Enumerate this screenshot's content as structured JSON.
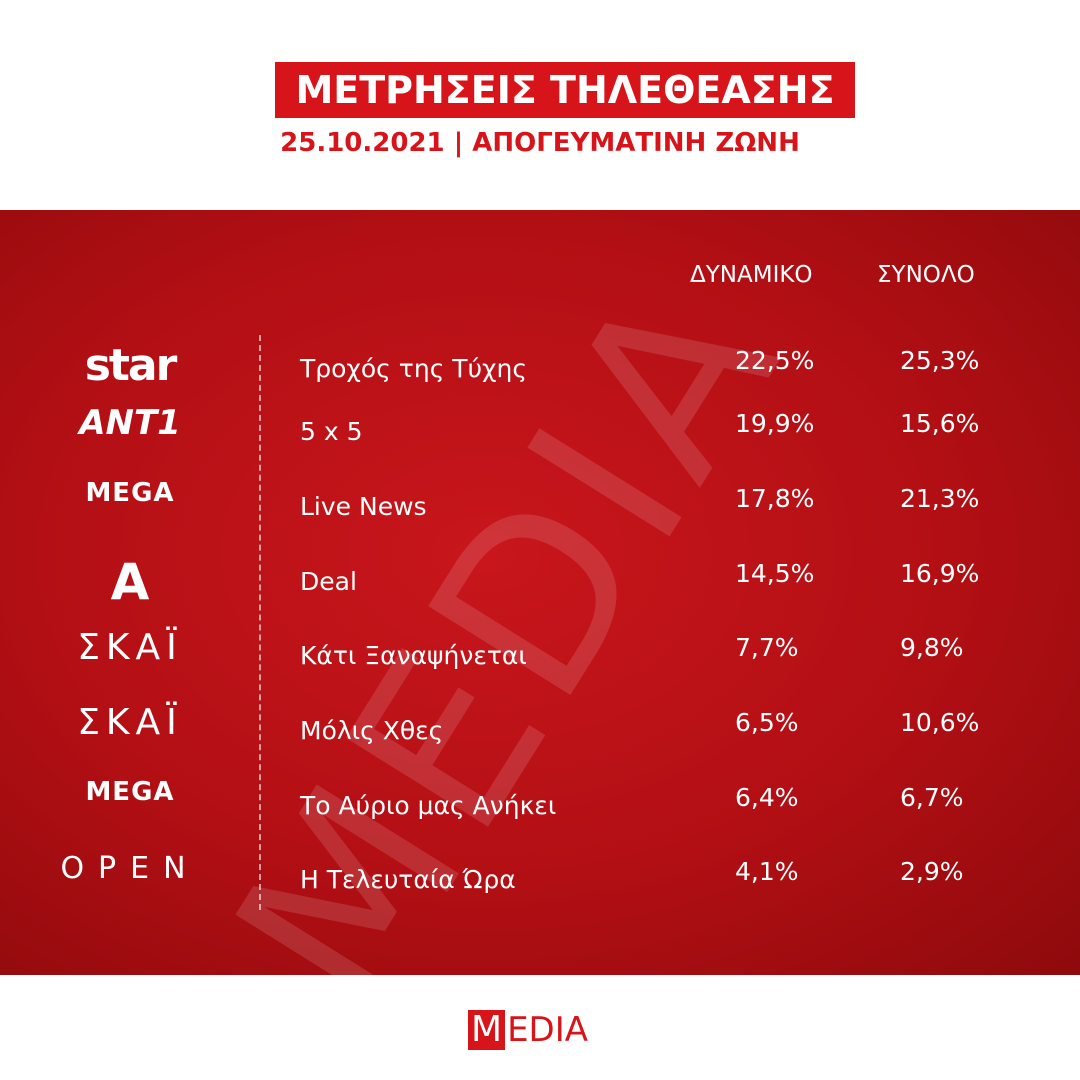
{
  "header": {
    "title": "ΜΕΤΡΗΣΕΙΣ ΤΗΛΕΘΕΑΣΗΣ",
    "subtitle": "25.10.2021 | ΑΠΟΓΕΥΜΑΤΙΝΗ ΖΩΝΗ"
  },
  "watermark": "MEDIA",
  "table": {
    "columns": [
      "ΔΥΝΑΜΙΚΟ",
      "ΣΥΝΟΛΟ"
    ],
    "rows": [
      {
        "channel": "star",
        "show": "Τροχός της Τύχης",
        "potential": "22,5%",
        "total": "25,3%"
      },
      {
        "channel": "ANT1",
        "show": "5 x 5",
        "potential": "19,9%",
        "total": "15,6%"
      },
      {
        "channel": "MEGA",
        "show": "Live News",
        "potential": "17,8%",
        "total": "21,3%"
      },
      {
        "channel": "A",
        "show": "Deal",
        "potential": "14,5%",
        "total": "16,9%"
      },
      {
        "channel": "ΣΚΑΪ",
        "show": "Κάτι Ξαναψήνεται",
        "potential": "7,7%",
        "total": "9,8%"
      },
      {
        "channel": "ΣΚΑΪ",
        "show": "Μόλις Χθες",
        "potential": "6,5%",
        "total": "10,6%"
      },
      {
        "channel": "MEGA",
        "show": "Το Αύριο μας Ανήκει",
        "potential": "6,4%",
        "total": "6,7%"
      },
      {
        "channel": "OPEN",
        "show": "Η Τελευταία Ώρα",
        "potential": "4,1%",
        "total": "2,9%"
      }
    ]
  },
  "footer": {
    "logo_initial": "M",
    "logo_rest": "EDIA"
  }
}
